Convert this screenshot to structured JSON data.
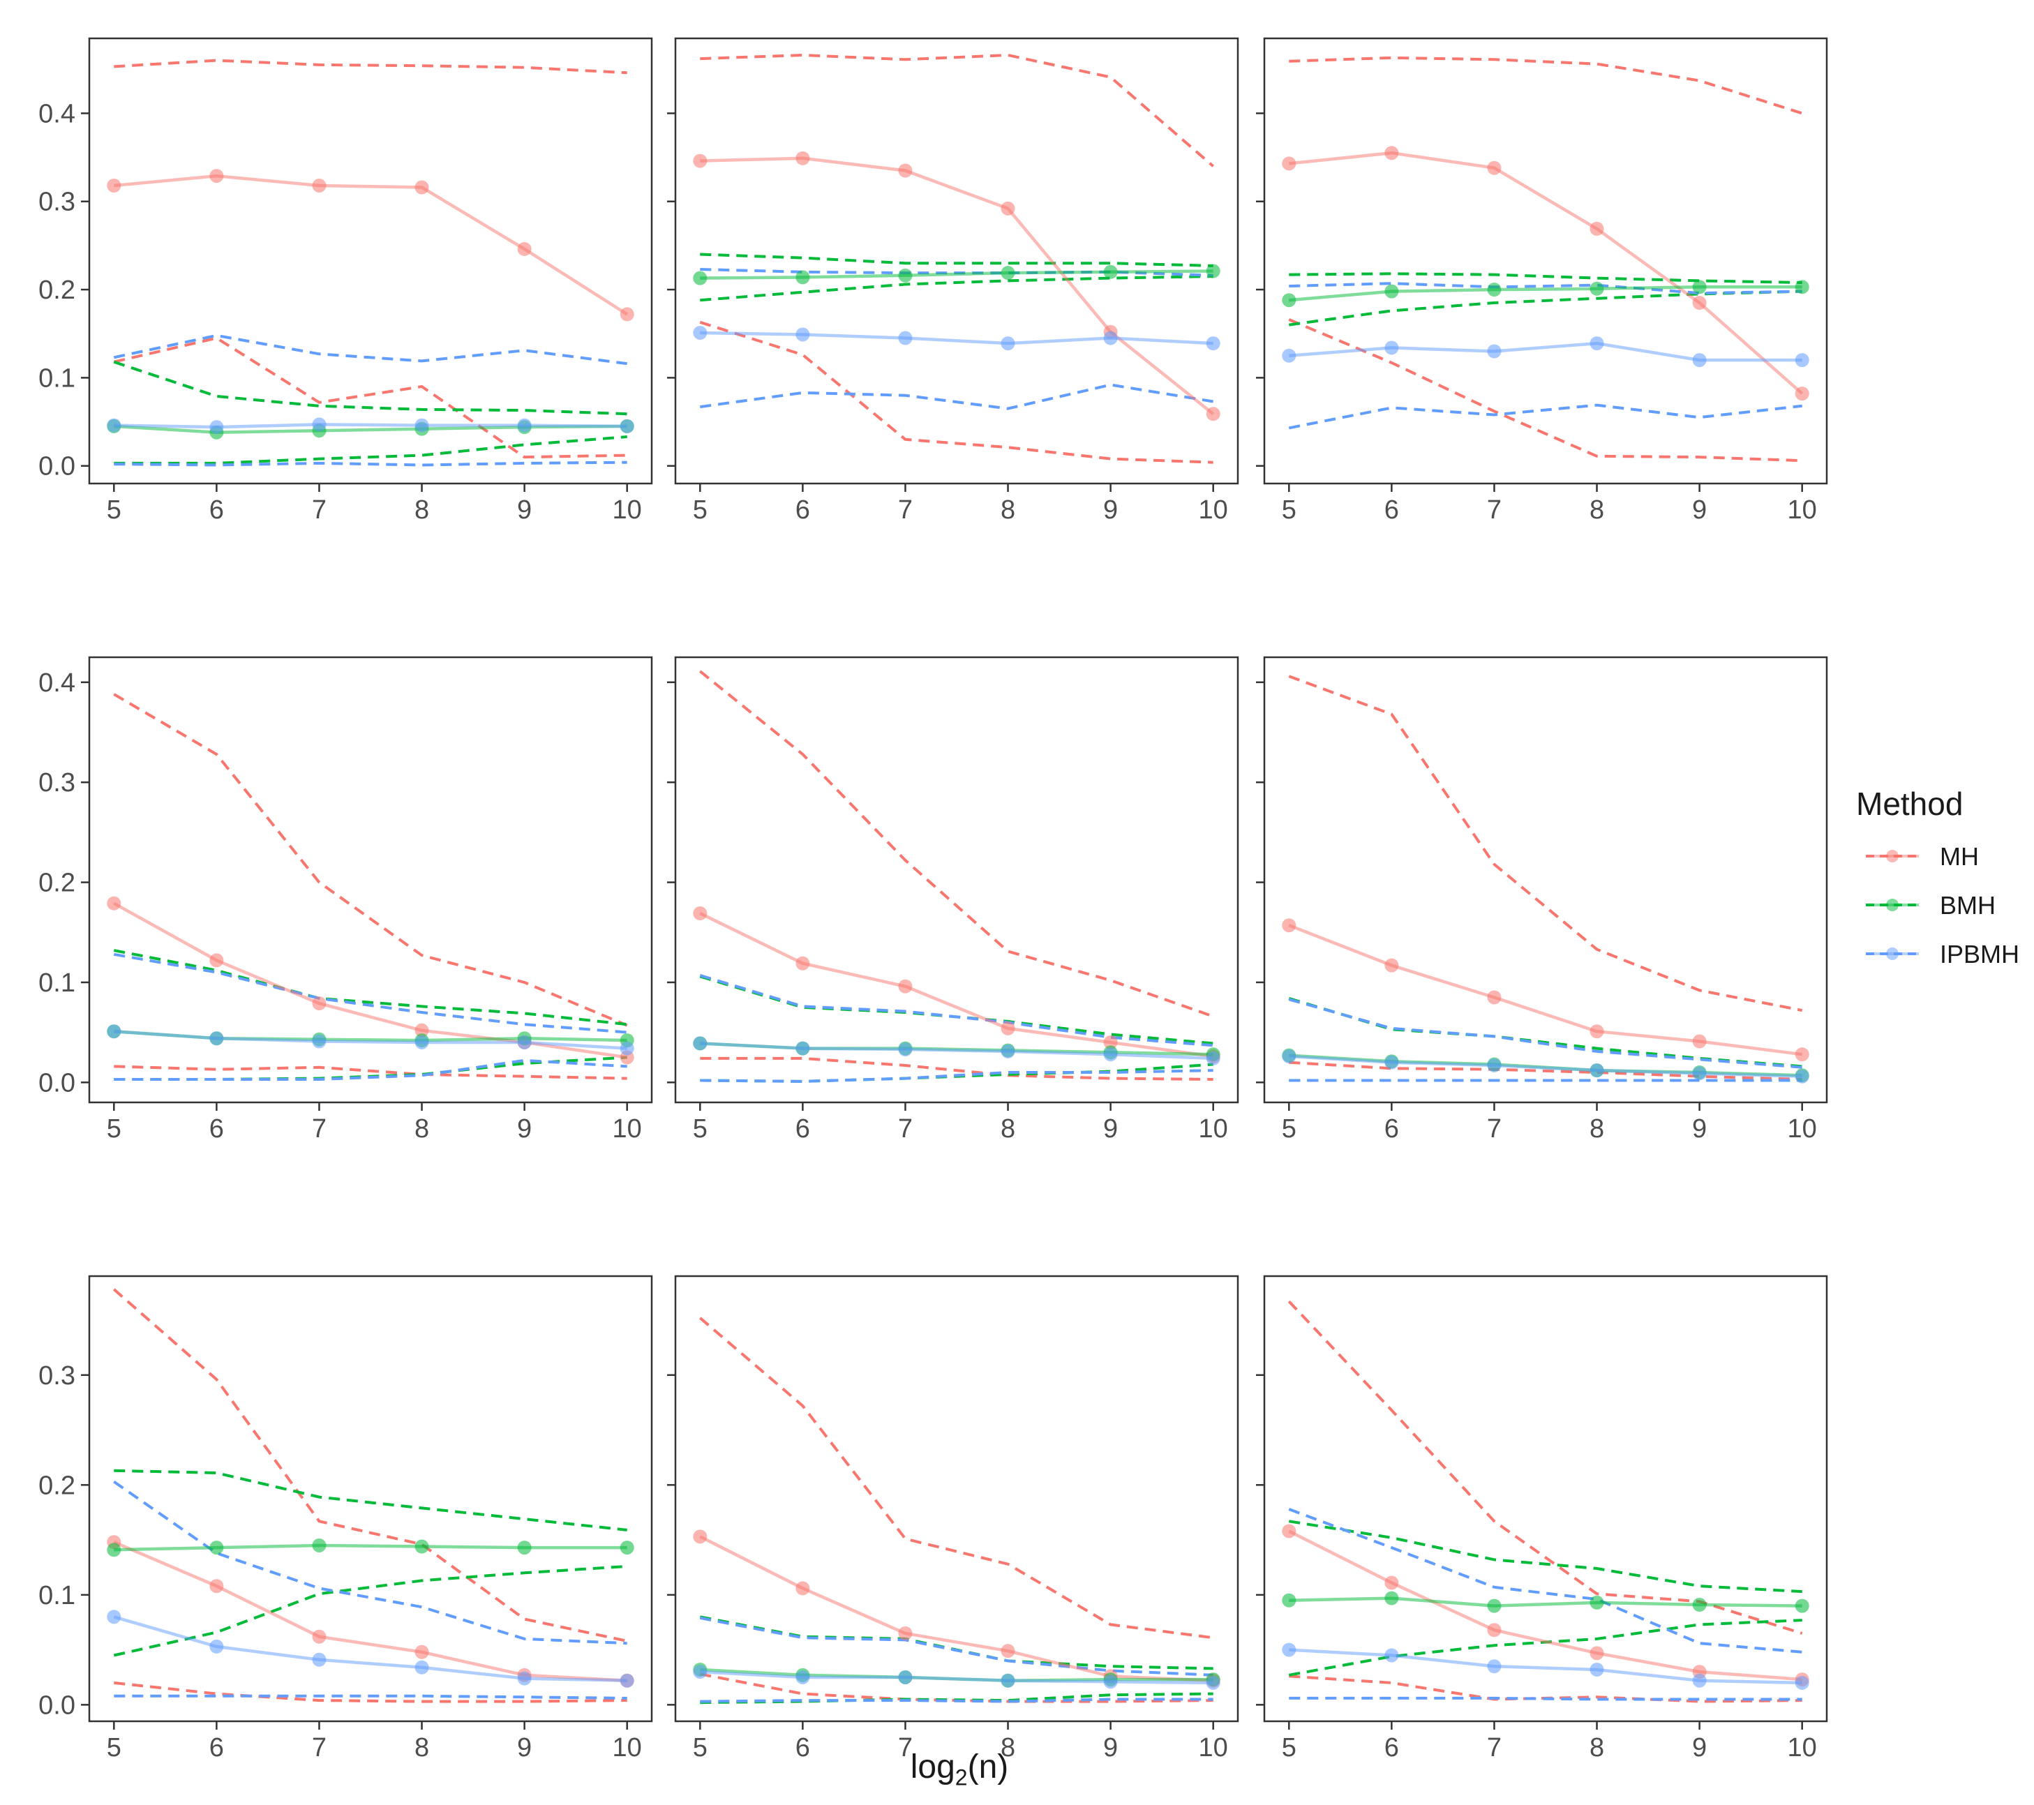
{
  "chart_data": {
    "type": "line",
    "layout": "3x3 facet grid",
    "xlabel_base": "log",
    "xlabel_sub": "2",
    "xlabel_tail": "(n)",
    "x": [
      5,
      6,
      7,
      8,
      9,
      10
    ],
    "x_ticks": [
      "5",
      "6",
      "7",
      "8",
      "9",
      "10"
    ],
    "xlim": [
      4.76,
      10.24
    ],
    "legend": {
      "title": "Method",
      "position": "right",
      "entries": [
        {
          "name": "MH",
          "color": "#F8766D"
        },
        {
          "name": "BMH",
          "color": "#00BA38"
        },
        {
          "name": "IPBMH",
          "color": "#619CFF"
        }
      ]
    },
    "rows": [
      {
        "ylim": [
          -0.02,
          0.485
        ],
        "y_ticks": [
          0.0,
          0.1,
          0.2,
          0.3,
          0.4
        ],
        "y_tick_labels": [
          "0.0",
          "0.1",
          "0.2",
          "0.3",
          "0.4"
        ],
        "panels": [
          {
            "series": [
              {
                "name": "MH",
                "mean": [
                  0.318,
                  0.329,
                  0.318,
                  0.316,
                  0.246,
                  0.172
                ],
                "upper": [
                  0.453,
                  0.46,
                  0.455,
                  0.454,
                  0.452,
                  0.446
                ],
                "lower": [
                  0.118,
                  0.145,
                  0.072,
                  0.09,
                  0.01,
                  0.012
                ]
              },
              {
                "name": "BMH",
                "mean": [
                  0.045,
                  0.038,
                  0.04,
                  0.042,
                  0.044,
                  0.045
                ],
                "upper": [
                  0.118,
                  0.079,
                  0.068,
                  0.064,
                  0.063,
                  0.059
                ],
                "lower": [
                  0.003,
                  0.003,
                  0.008,
                  0.012,
                  0.024,
                  0.033
                ]
              },
              {
                "name": "IPBMH",
                "mean": [
                  0.046,
                  0.044,
                  0.047,
                  0.046,
                  0.046,
                  0.045
                ],
                "upper": [
                  0.123,
                  0.148,
                  0.127,
                  0.119,
                  0.131,
                  0.116
                ],
                "lower": [
                  0.002,
                  0.001,
                  0.003,
                  0.001,
                  0.003,
                  0.004
                ]
              }
            ]
          },
          {
            "series": [
              {
                "name": "MH",
                "mean": [
                  0.346,
                  0.349,
                  0.335,
                  0.292,
                  0.152,
                  0.059
                ],
                "upper": [
                  0.462,
                  0.466,
                  0.461,
                  0.466,
                  0.441,
                  0.34
                ],
                "lower": [
                  0.163,
                  0.126,
                  0.03,
                  0.021,
                  0.008,
                  0.004
                ]
              },
              {
                "name": "BMH",
                "mean": [
                  0.213,
                  0.214,
                  0.216,
                  0.219,
                  0.22,
                  0.221
                ],
                "upper": [
                  0.24,
                  0.236,
                  0.23,
                  0.23,
                  0.23,
                  0.227
                ],
                "lower": [
                  0.188,
                  0.197,
                  0.206,
                  0.21,
                  0.213,
                  0.215
                ]
              },
              {
                "name": "IPBMH",
                "mean": [
                  0.151,
                  0.149,
                  0.145,
                  0.139,
                  0.145,
                  0.139
                ],
                "upper": [
                  0.223,
                  0.22,
                  0.219,
                  0.219,
                  0.22,
                  0.216
                ],
                "lower": [
                  0.067,
                  0.083,
                  0.08,
                  0.065,
                  0.092,
                  0.073
                ]
              }
            ]
          },
          {
            "series": [
              {
                "name": "MH",
                "mean": [
                  0.343,
                  0.355,
                  0.338,
                  0.269,
                  0.185,
                  0.082
                ],
                "upper": [
                  0.459,
                  0.463,
                  0.461,
                  0.456,
                  0.437,
                  0.4
                ],
                "lower": [
                  0.166,
                  0.117,
                  0.062,
                  0.011,
                  0.01,
                  0.006
                ]
              },
              {
                "name": "BMH",
                "mean": [
                  0.188,
                  0.198,
                  0.2,
                  0.201,
                  0.203,
                  0.203
                ],
                "upper": [
                  0.217,
                  0.218,
                  0.217,
                  0.213,
                  0.21,
                  0.208
                ],
                "lower": [
                  0.16,
                  0.176,
                  0.185,
                  0.19,
                  0.195,
                  0.198
                ]
              },
              {
                "name": "IPBMH",
                "mean": [
                  0.125,
                  0.134,
                  0.13,
                  0.139,
                  0.12,
                  0.12
                ],
                "upper": [
                  0.204,
                  0.207,
                  0.203,
                  0.205,
                  0.196,
                  0.198
                ],
                "lower": [
                  0.043,
                  0.066,
                  0.058,
                  0.069,
                  0.055,
                  0.068
                ]
              }
            ]
          }
        ]
      },
      {
        "ylim": [
          -0.02,
          0.425
        ],
        "y_ticks": [
          0.0,
          0.1,
          0.2,
          0.3,
          0.4
        ],
        "y_tick_labels": [
          "0.0",
          "0.1",
          "0.2",
          "0.3",
          "0.4"
        ],
        "panels": [
          {
            "series": [
              {
                "name": "MH",
                "mean": [
                  0.179,
                  0.122,
                  0.079,
                  0.052,
                  0.04,
                  0.025
                ],
                "upper": [
                  0.388,
                  0.328,
                  0.2,
                  0.127,
                  0.1,
                  0.057
                ],
                "lower": [
                  0.016,
                  0.013,
                  0.015,
                  0.008,
                  0.006,
                  0.004
                ]
              },
              {
                "name": "BMH",
                "mean": [
                  0.051,
                  0.044,
                  0.043,
                  0.042,
                  0.044,
                  0.042
                ],
                "upper": [
                  0.132,
                  0.112,
                  0.084,
                  0.076,
                  0.069,
                  0.058
                ],
                "lower": [
                  0.003,
                  0.003,
                  0.004,
                  0.008,
                  0.019,
                  0.025
                ]
              },
              {
                "name": "IPBMH",
                "mean": [
                  0.051,
                  0.044,
                  0.041,
                  0.04,
                  0.04,
                  0.034
                ],
                "upper": [
                  0.128,
                  0.11,
                  0.084,
                  0.07,
                  0.058,
                  0.05
                ],
                "lower": [
                  0.003,
                  0.003,
                  0.003,
                  0.007,
                  0.022,
                  0.016
                ]
              }
            ]
          },
          {
            "series": [
              {
                "name": "MH",
                "mean": [
                  0.169,
                  0.119,
                  0.096,
                  0.054,
                  0.04,
                  0.026
                ],
                "upper": [
                  0.411,
                  0.328,
                  0.222,
                  0.131,
                  0.102,
                  0.066
                ],
                "lower": [
                  0.024,
                  0.024,
                  0.017,
                  0.007,
                  0.004,
                  0.003
                ]
              },
              {
                "name": "BMH",
                "mean": [
                  0.039,
                  0.034,
                  0.034,
                  0.032,
                  0.03,
                  0.028
                ],
                "upper": [
                  0.106,
                  0.075,
                  0.07,
                  0.061,
                  0.048,
                  0.039
                ],
                "lower": [
                  0.002,
                  0.001,
                  0.004,
                  0.008,
                  0.011,
                  0.018
                ]
              },
              {
                "name": "IPBMH",
                "mean": [
                  0.039,
                  0.034,
                  0.033,
                  0.031,
                  0.028,
                  0.024
                ],
                "upper": [
                  0.107,
                  0.076,
                  0.071,
                  0.06,
                  0.045,
                  0.037
                ],
                "lower": [
                  0.002,
                  0.001,
                  0.004,
                  0.01,
                  0.01,
                  0.012
                ]
              }
            ]
          },
          {
            "series": [
              {
                "name": "MH",
                "mean": [
                  0.157,
                  0.117,
                  0.085,
                  0.051,
                  0.041,
                  0.028
                ],
                "upper": [
                  0.406,
                  0.368,
                  0.218,
                  0.133,
                  0.092,
                  0.072
                ],
                "lower": [
                  0.02,
                  0.014,
                  0.013,
                  0.01,
                  0.006,
                  0.003
                ]
              },
              {
                "name": "BMH",
                "mean": [
                  0.027,
                  0.021,
                  0.018,
                  0.012,
                  0.01,
                  0.007
                ],
                "upper": [
                  0.084,
                  0.053,
                  0.046,
                  0.034,
                  0.024,
                  0.016
                ],
                "lower": [
                  0.002,
                  0.002,
                  0.002,
                  0.002,
                  0.002,
                  0.002
                ]
              },
              {
                "name": "IPBMH",
                "mean": [
                  0.026,
                  0.02,
                  0.017,
                  0.012,
                  0.009,
                  0.006
                ],
                "upper": [
                  0.083,
                  0.054,
                  0.046,
                  0.031,
                  0.023,
                  0.015
                ],
                "lower": [
                  0.002,
                  0.002,
                  0.002,
                  0.002,
                  0.002,
                  0.002
                ]
              }
            ]
          }
        ]
      },
      {
        "ylim": [
          -0.015,
          0.39
        ],
        "y_ticks": [
          0.0,
          0.1,
          0.2,
          0.3
        ],
        "y_tick_labels": [
          "0.0",
          "0.1",
          "0.2",
          "0.3"
        ],
        "panels": [
          {
            "series": [
              {
                "name": "MH",
                "mean": [
                  0.148,
                  0.108,
                  0.062,
                  0.048,
                  0.027,
                  0.022
                ],
                "upper": [
                  0.378,
                  0.296,
                  0.167,
                  0.146,
                  0.078,
                  0.058
                ],
                "lower": [
                  0.02,
                  0.01,
                  0.004,
                  0.003,
                  0.003,
                  0.004
                ]
              },
              {
                "name": "BMH",
                "mean": [
                  0.141,
                  0.143,
                  0.145,
                  0.144,
                  0.143,
                  0.143
                ],
                "upper": [
                  0.213,
                  0.211,
                  0.189,
                  0.179,
                  0.169,
                  0.159
                ],
                "lower": [
                  0.045,
                  0.066,
                  0.101,
                  0.113,
                  0.12,
                  0.126
                ]
              },
              {
                "name": "IPBMH",
                "mean": [
                  0.08,
                  0.053,
                  0.041,
                  0.034,
                  0.024,
                  0.022
                ],
                "upper": [
                  0.203,
                  0.138,
                  0.106,
                  0.089,
                  0.06,
                  0.056
                ],
                "lower": [
                  0.008,
                  0.008,
                  0.008,
                  0.008,
                  0.007,
                  0.006
                ]
              }
            ]
          },
          {
            "series": [
              {
                "name": "MH",
                "mean": [
                  0.153,
                  0.106,
                  0.065,
                  0.049,
                  0.026,
                  0.022
                ],
                "upper": [
                  0.352,
                  0.272,
                  0.151,
                  0.128,
                  0.073,
                  0.061
                ],
                "lower": [
                  0.028,
                  0.01,
                  0.005,
                  0.003,
                  0.003,
                  0.004
                ]
              },
              {
                "name": "BMH",
                "mean": [
                  0.032,
                  0.027,
                  0.025,
                  0.022,
                  0.023,
                  0.023
                ],
                "upper": [
                  0.08,
                  0.062,
                  0.06,
                  0.04,
                  0.035,
                  0.033
                ],
                "lower": [
                  0.002,
                  0.003,
                  0.005,
                  0.004,
                  0.009,
                  0.01
                ]
              },
              {
                "name": "IPBMH",
                "mean": [
                  0.03,
                  0.025,
                  0.025,
                  0.022,
                  0.021,
                  0.02
                ],
                "upper": [
                  0.079,
                  0.061,
                  0.059,
                  0.04,
                  0.031,
                  0.027
                ],
                "lower": [
                  0.003,
                  0.004,
                  0.004,
                  0.003,
                  0.005,
                  0.005
                ]
              }
            ]
          },
          {
            "series": [
              {
                "name": "MH",
                "mean": [
                  0.158,
                  0.111,
                  0.068,
                  0.047,
                  0.03,
                  0.023
                ],
                "upper": [
                  0.367,
                  0.268,
                  0.167,
                  0.101,
                  0.094,
                  0.065
                ],
                "lower": [
                  0.026,
                  0.02,
                  0.005,
                  0.007,
                  0.003,
                  0.004
                ]
              },
              {
                "name": "BMH",
                "mean": [
                  0.095,
                  0.097,
                  0.09,
                  0.093,
                  0.091,
                  0.09
                ],
                "upper": [
                  0.167,
                  0.152,
                  0.132,
                  0.124,
                  0.108,
                  0.103
                ],
                "lower": [
                  0.027,
                  0.044,
                  0.054,
                  0.06,
                  0.073,
                  0.077
                ]
              },
              {
                "name": "IPBMH",
                "mean": [
                  0.05,
                  0.045,
                  0.035,
                  0.032,
                  0.022,
                  0.02
                ],
                "upper": [
                  0.178,
                  0.143,
                  0.107,
                  0.096,
                  0.056,
                  0.048
                ],
                "lower": [
                  0.006,
                  0.006,
                  0.006,
                  0.005,
                  0.005,
                  0.005
                ]
              }
            ]
          }
        ]
      }
    ]
  }
}
